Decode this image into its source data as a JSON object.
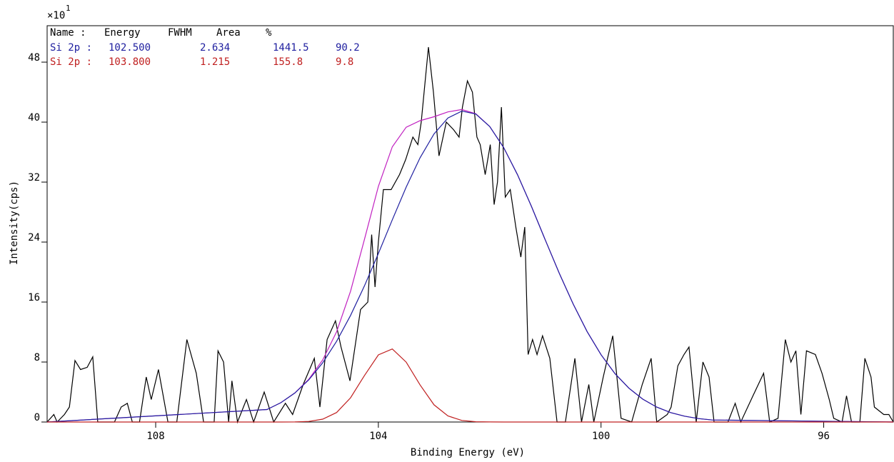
{
  "chart_data": {
    "type": "line",
    "xlabel": "Binding Energy (eV)",
    "ylabel": "Intensity(cps)",
    "y_multiplier": "×10",
    "y_multiplier_exponent": "1",
    "xlim": [
      109.95,
      94.75
    ],
    "ylim": [
      0,
      52.86
    ],
    "xticks": [
      108,
      104,
      100,
      96
    ],
    "yticks": [
      0,
      8,
      16,
      24,
      32,
      40,
      48
    ],
    "series": [
      {
        "color": "#000000",
        "x": [
          109.95,
          109.83,
          109.77,
          109.64,
          109.55,
          109.45,
          109.35,
          109.23,
          109.13,
          109.04,
          108.74,
          108.62,
          108.51,
          108.42,
          108.29,
          108.17,
          108.08,
          107.95,
          107.78,
          107.62,
          107.44,
          107.27,
          107.14,
          106.95,
          106.88,
          106.78,
          106.69,
          106.63,
          106.53,
          106.37,
          106.24,
          106.05,
          105.88,
          105.67,
          105.54,
          105.35,
          105.15,
          105.05,
          104.92,
          104.77,
          104.67,
          104.51,
          104.32,
          104.19,
          104.12,
          104.06,
          104.0,
          103.91,
          103.77,
          103.62,
          103.51,
          103.38,
          103.29,
          103.23,
          103.1,
          103.01,
          102.91,
          102.78,
          102.65,
          102.55,
          102.49,
          102.4,
          102.31,
          102.23,
          102.17,
          102.08,
          101.99,
          101.92,
          101.86,
          101.79,
          101.72,
          101.63,
          101.53,
          101.44,
          101.37,
          101.31,
          101.23,
          101.15,
          101.05,
          100.92,
          100.79,
          100.64,
          100.47,
          100.35,
          100.22,
          100.13,
          99.96,
          99.79,
          99.64,
          99.45,
          99.26,
          99.1,
          99.0,
          98.81,
          98.74,
          98.62,
          98.51,
          98.42,
          98.29,
          98.17,
          98.06,
          97.97,
          97.72,
          97.59,
          97.49,
          97.27,
          97.08,
          96.97,
          96.82,
          96.69,
          96.59,
          96.5,
          96.41,
          96.31,
          96.15,
          96.03,
          95.9,
          95.82,
          95.67,
          95.59,
          95.5,
          95.35,
          95.26,
          95.15,
          95.09,
          94.92,
          94.83,
          94.75
        ],
        "values": [
          0,
          1,
          0,
          1,
          2,
          8.2,
          7,
          7.3,
          8.7,
          0,
          0,
          2,
          2.5,
          0,
          0,
          6,
          3,
          7,
          0,
          0,
          11,
          6.5,
          0,
          0,
          9.5,
          8,
          0,
          5.5,
          0,
          3,
          0,
          4,
          0,
          2.5,
          1,
          5,
          8.5,
          2,
          11,
          13.5,
          10,
          5.5,
          15,
          16,
          25,
          18,
          24,
          31,
          31,
          33,
          35,
          38,
          37,
          40,
          50,
          44,
          35.5,
          40,
          39,
          38,
          42,
          45.5,
          44,
          38,
          37,
          33,
          37,
          29,
          32,
          42,
          30,
          31,
          26,
          22,
          26,
          9,
          11,
          9,
          11.5,
          8.5,
          0,
          0,
          8.5,
          0,
          5,
          0,
          6,
          11.5,
          0.5,
          0,
          5,
          8.5,
          0,
          1,
          2,
          7.5,
          9,
          10,
          0,
          8,
          6,
          0,
          0,
          2.5,
          0,
          3.5,
          6.5,
          0,
          0.5,
          11,
          8,
          9.5,
          1,
          9.5,
          9,
          6.5,
          3,
          0.5,
          0,
          3.5,
          0,
          0,
          8.5,
          6,
          2,
          1,
          1,
          0
        ]
      },
      {
        "color": "#c020c0",
        "x": [
          109.95,
          106,
          105.75,
          105.5,
          105.25,
          105,
          104.75,
          104.5,
          104.25,
          104,
          103.75,
          103.5,
          103.25,
          103,
          102.75,
          102.5,
          102.25,
          102,
          101.75,
          101.5,
          101.25,
          101,
          100.75,
          100.5,
          100.25,
          100,
          99.75,
          99.5,
          99.25,
          99,
          98.75,
          98.5,
          98.25,
          98,
          94.75
        ],
        "values": [
          0,
          1.67,
          2.58,
          3.88,
          5.7,
          8.28,
          12.04,
          17.44,
          24.36,
          31.43,
          36.71,
          39.32,
          40.19,
          40.72,
          41.36,
          41.68,
          41.12,
          39.42,
          36.62,
          32.97,
          28.75,
          24.27,
          19.85,
          15.73,
          12.07,
          8.98,
          6.46,
          4.51,
          3.05,
          1.99,
          1.26,
          0.78,
          0.46,
          0.27,
          0
        ]
      },
      {
        "color": "#2020a0",
        "x": [
          109.95,
          106,
          105.75,
          105.5,
          105.25,
          105,
          104.75,
          104.5,
          104.25,
          104,
          103.75,
          103.5,
          103.25,
          103,
          102.75,
          102.5,
          102.25,
          102,
          101.75,
          101.5,
          101.25,
          101,
          100.75,
          100.5,
          100.25,
          100,
          99.75,
          99.5,
          99.25,
          99,
          98.75,
          98.5,
          98.25,
          98,
          94.75
        ],
        "values": [
          0,
          1.67,
          2.58,
          3.87,
          5.62,
          7.9,
          10.77,
          14.21,
          18.16,
          22.48,
          26.97,
          31.33,
          35.25,
          38.42,
          40.55,
          41.47,
          41.08,
          39.41,
          36.62,
          32.97,
          28.75,
          24.27,
          19.85,
          15.73,
          12.07,
          8.98,
          6.46,
          4.51,
          3.05,
          1.99,
          1.26,
          0.78,
          0.46,
          0.27,
          0
        ]
      },
      {
        "color": "#c02020",
        "x": [
          109.95,
          106,
          105.75,
          105.5,
          105.25,
          105,
          104.75,
          104.5,
          104.25,
          104,
          103.75,
          103.5,
          103.25,
          103,
          102.75,
          102.5,
          102.25,
          102,
          101.75,
          101.5,
          101.25,
          101,
          100.75,
          100.5,
          100.25,
          100,
          99.75,
          99.5,
          99.25,
          99,
          98.75,
          98.5,
          98.25,
          98,
          94.75
        ],
        "values": [
          0,
          0,
          0,
          0.01,
          0.08,
          0.38,
          1.27,
          3.23,
          6.2,
          8.95,
          9.74,
          7.99,
          4.94,
          2.3,
          0.81,
          0.21,
          0.04,
          0.01,
          0,
          0,
          0,
          0,
          0,
          0,
          0,
          0,
          0,
          0,
          0,
          0,
          0,
          0,
          0,
          0,
          0
        ]
      }
    ],
    "peak_table": {
      "header": [
        "Name :",
        "Energy",
        "FWHM",
        "Area",
        "%"
      ],
      "rows": [
        {
          "color": "#2020a0",
          "cells": [
            "Si 2p :",
            "102.500",
            "2.634",
            "1441.5",
            "90.2"
          ]
        },
        {
          "color": "#c02020",
          "cells": [
            "Si 2p :",
            "103.800",
            "1.215",
            "155.8",
            "9.8"
          ]
        }
      ]
    }
  }
}
